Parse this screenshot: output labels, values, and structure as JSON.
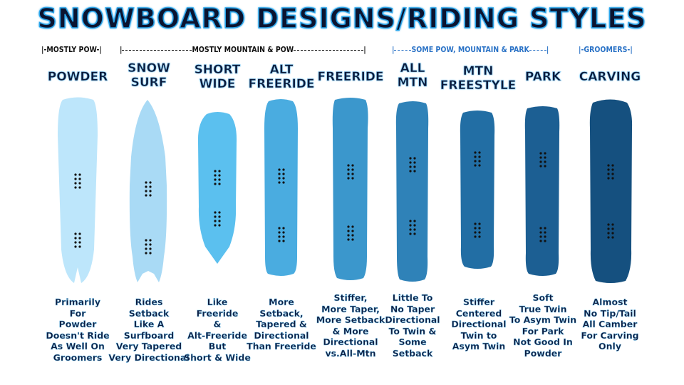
{
  "title": "SNOWBOARD DESIGNS/RIDING STYLES",
  "groups": [
    {
      "label": "|-MOSTLY POW-|"
    },
    {
      "label": "MOSTLY MOUNTAIN & POW"
    },
    {
      "label": "SOME POW, MOUNTAIN & PARK"
    },
    {
      "label": "|-GROOMERS-|"
    }
  ],
  "styles": [
    {
      "name": "POWDER",
      "description": "Primarily\nFor\nPowder\nDoesn't Ride\nAs Well On\nGroomers",
      "color": "#bde6fb"
    },
    {
      "name": "SNOW\nSURF",
      "description": "Rides\nSetback\nLike A\nSurfboard\nVery Tapered\nVery Directional",
      "color": "#a9daf5"
    },
    {
      "name": "SHORT\nWIDE",
      "description": "Like\nFreeride\n&\nAlt-Freeride\nBut\nShort & Wide",
      "color": "#5bc0ef"
    },
    {
      "name": "ALT\nFREERIDE",
      "description": "More\nSetback,\nTapered &\nDirectional\nThan Freeride",
      "color": "#4aace0"
    },
    {
      "name": "FREERIDE",
      "description": "Stiffer,\nMore Taper,\nMore Setback\n& More\nDirectional\nvs.All-Mtn",
      "color": "#3b97cc"
    },
    {
      "name": "ALL\nMTN",
      "description": "Little To\nNo Taper\nDirectional\nTo Twin &\nSome\nSetback",
      "color": "#2f82b8"
    },
    {
      "name": "MTN\nFREESTYLE",
      "description": "Stiffer\nCentered\nDirectional\nTwin to\nAsym Twin",
      "color": "#226ea4"
    },
    {
      "name": "PARK",
      "description": "Soft\nTrue Twin\nTo Asym Twin\nFor Park\nNot Good In\nPowder",
      "color": "#1c5f93"
    },
    {
      "name": "CARVING",
      "description": "Almost\nNo Tip/Tail\nAll Camber\nFor Carving\nOnly",
      "color": "#15507f"
    }
  ]
}
